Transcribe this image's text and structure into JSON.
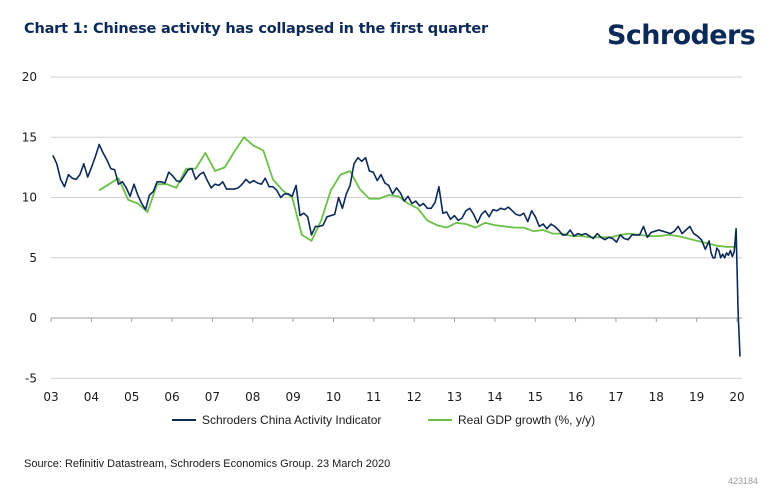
{
  "header": {
    "title": "Chart 1: Chinese activity has collapsed in the first quarter",
    "logo": "Schroders"
  },
  "footer": {
    "source": "Source: Refinitiv Datastream, Schroders Economics Group. 23 March 2020",
    "code": "423184"
  },
  "colors": {
    "activity": "#0b2a5a",
    "gdp": "#6cc04a",
    "grid": "#d0d0d0",
    "axis": "#a0a0a0"
  },
  "chart_data": {
    "type": "line",
    "title": "Chart 1: Chinese activity has collapsed in the first quarter",
    "xlabel": "",
    "ylabel": "",
    "xlim": [
      2003,
      2020.05
    ],
    "ylim": [
      -5,
      20
    ],
    "yticks": [
      20,
      15,
      10,
      5,
      0,
      -5
    ],
    "xtick_labels": [
      "03",
      "04",
      "05",
      "06",
      "07",
      "08",
      "09",
      "10",
      "11",
      "12",
      "13",
      "14",
      "15",
      "16",
      "17",
      "18",
      "19",
      "20"
    ],
    "xtick_values": [
      2003,
      2004,
      2005,
      2006,
      2007,
      2008,
      2009,
      2010,
      2011,
      2012,
      2013,
      2014,
      2015,
      2016,
      2017,
      2018,
      2019,
      2020
    ],
    "grid": true,
    "legend_position": "bottom",
    "series": [
      {
        "name": "Schroders China Activity Indicator",
        "color": "#0b2a5a",
        "points": [
          [
            2003.05,
            13.5
          ],
          [
            2003.15,
            12.8
          ],
          [
            2003.25,
            11.5
          ],
          [
            2003.35,
            10.9
          ],
          [
            2003.45,
            11.9
          ],
          [
            2003.55,
            11.6
          ],
          [
            2003.65,
            11.5
          ],
          [
            2003.75,
            11.9
          ],
          [
            2003.85,
            12.8
          ],
          [
            2003.95,
            11.7
          ],
          [
            2004.05,
            12.5
          ],
          [
            2004.15,
            13.4
          ],
          [
            2004.25,
            14.4
          ],
          [
            2004.35,
            13.7
          ],
          [
            2004.45,
            13.1
          ],
          [
            2004.55,
            12.4
          ],
          [
            2004.65,
            12.3
          ],
          [
            2004.75,
            11.1
          ],
          [
            2004.85,
            11.3
          ],
          [
            2004.95,
            10.8
          ],
          [
            2005.05,
            10.1
          ],
          [
            2005.15,
            11.1
          ],
          [
            2005.25,
            10.2
          ],
          [
            2005.35,
            9.5
          ],
          [
            2005.45,
            9.0
          ],
          [
            2005.55,
            10.2
          ],
          [
            2005.65,
            10.5
          ],
          [
            2005.75,
            11.3
          ],
          [
            2005.85,
            11.3
          ],
          [
            2005.95,
            11.2
          ],
          [
            2006.05,
            12.1
          ],
          [
            2006.15,
            11.8
          ],
          [
            2006.25,
            11.4
          ],
          [
            2006.35,
            11.3
          ],
          [
            2006.45,
            11.8
          ],
          [
            2006.55,
            12.3
          ],
          [
            2006.65,
            12.4
          ],
          [
            2006.75,
            11.5
          ],
          [
            2006.85,
            11.9
          ],
          [
            2006.95,
            12.1
          ],
          [
            2007.05,
            11.4
          ],
          [
            2007.15,
            10.8
          ],
          [
            2007.25,
            11.1
          ],
          [
            2007.35,
            11.0
          ],
          [
            2007.45,
            11.3
          ],
          [
            2007.55,
            10.7
          ],
          [
            2007.65,
            10.7
          ],
          [
            2007.75,
            10.7
          ],
          [
            2007.85,
            10.8
          ],
          [
            2007.95,
            11.1
          ],
          [
            2008.05,
            11.5
          ],
          [
            2008.15,
            11.2
          ],
          [
            2008.25,
            11.4
          ],
          [
            2008.35,
            11.2
          ],
          [
            2008.45,
            11.1
          ],
          [
            2008.55,
            11.6
          ],
          [
            2008.65,
            10.9
          ],
          [
            2008.75,
            10.9
          ],
          [
            2008.85,
            10.6
          ],
          [
            2008.95,
            10.0
          ],
          [
            2009.05,
            10.3
          ],
          [
            2009.15,
            10.3
          ],
          [
            2009.25,
            10.1
          ],
          [
            2009.35,
            11.0
          ],
          [
            2009.45,
            8.5
          ],
          [
            2009.55,
            8.7
          ],
          [
            2009.65,
            8.4
          ],
          [
            2009.75,
            6.9
          ],
          [
            2009.85,
            7.6
          ],
          [
            2009.95,
            7.6
          ],
          [
            2010.05,
            7.7
          ],
          [
            2010.15,
            8.4
          ],
          [
            2010.25,
            8.5
          ],
          [
            2010.35,
            8.6
          ],
          [
            2010.45,
            10.0
          ],
          [
            2010.55,
            9.1
          ],
          [
            2010.65,
            10.3
          ],
          [
            2010.75,
            11.0
          ],
          [
            2010.85,
            12.8
          ],
          [
            2010.95,
            13.3
          ],
          [
            2011.05,
            13.0
          ],
          [
            2011.15,
            13.3
          ],
          [
            2011.25,
            12.2
          ],
          [
            2011.35,
            12.1
          ],
          [
            2011.45,
            11.4
          ],
          [
            2011.55,
            11.9
          ],
          [
            2011.65,
            11.2
          ],
          [
            2011.75,
            11.0
          ],
          [
            2011.85,
            10.3
          ],
          [
            2011.95,
            10.8
          ],
          [
            2012.05,
            10.4
          ],
          [
            2012.15,
            9.7
          ],
          [
            2012.25,
            10.1
          ],
          [
            2012.35,
            9.5
          ],
          [
            2012.45,
            9.7
          ],
          [
            2012.55,
            9.3
          ],
          [
            2012.65,
            9.5
          ],
          [
            2012.75,
            9.1
          ],
          [
            2012.85,
            9.1
          ],
          [
            2012.95,
            9.6
          ],
          [
            2013.05,
            10.9
          ],
          [
            2013.15,
            8.7
          ],
          [
            2013.25,
            8.8
          ],
          [
            2013.35,
            8.2
          ],
          [
            2013.45,
            8.5
          ],
          [
            2013.55,
            8.1
          ],
          [
            2013.65,
            8.3
          ],
          [
            2013.75,
            8.9
          ],
          [
            2013.85,
            9.1
          ],
          [
            2013.95,
            8.6
          ],
          [
            2014.05,
            7.9
          ],
          [
            2014.15,
            8.6
          ],
          [
            2014.25,
            8.9
          ],
          [
            2014.35,
            8.4
          ],
          [
            2014.45,
            9.0
          ],
          [
            2014.55,
            8.9
          ],
          [
            2014.65,
            9.1
          ],
          [
            2014.75,
            9.0
          ],
          [
            2014.85,
            9.2
          ],
          [
            2014.95,
            8.9
          ],
          [
            2015.05,
            8.6
          ],
          [
            2015.15,
            8.5
          ],
          [
            2015.25,
            8.7
          ],
          [
            2015.35,
            8.0
          ],
          [
            2015.45,
            8.9
          ],
          [
            2015.55,
            8.4
          ],
          [
            2015.65,
            7.6
          ],
          [
            2015.75,
            7.8
          ],
          [
            2015.85,
            7.4
          ],
          [
            2015.95,
            7.8
          ],
          [
            2016.05,
            7.6
          ],
          [
            2016.15,
            7.3
          ],
          [
            2016.25,
            6.9
          ],
          [
            2016.35,
            6.9
          ],
          [
            2016.45,
            7.3
          ],
          [
            2016.55,
            6.8
          ],
          [
            2016.65,
            7.0
          ],
          [
            2016.75,
            6.9
          ],
          [
            2016.85,
            7.0
          ],
          [
            2016.95,
            6.8
          ],
          [
            2017.05,
            6.6
          ],
          [
            2017.15,
            7.0
          ],
          [
            2017.25,
            6.7
          ],
          [
            2017.35,
            6.5
          ],
          [
            2017.45,
            6.7
          ],
          [
            2017.55,
            6.6
          ],
          [
            2017.65,
            6.3
          ],
          [
            2017.75,
            6.9
          ],
          [
            2017.85,
            6.6
          ],
          [
            2017.95,
            6.5
          ],
          [
            2018.05,
            6.9
          ],
          [
            2018.15,
            6.9
          ],
          [
            2018.25,
            6.9
          ],
          [
            2018.35,
            7.6
          ],
          [
            2018.45,
            6.7
          ],
          [
            2018.55,
            7.1
          ],
          [
            2018.65,
            7.2
          ],
          [
            2018.75,
            7.3
          ],
          [
            2018.85,
            7.2
          ],
          [
            2018.95,
            7.1
          ],
          [
            2019.05,
            7.0
          ],
          [
            2019.15,
            7.2
          ],
          [
            2019.25,
            7.6
          ],
          [
            2019.35,
            7.0
          ],
          [
            2019.45,
            7.3
          ],
          [
            2019.55,
            7.6
          ],
          [
            2019.65,
            7.0
          ],
          [
            2019.75,
            6.8
          ],
          [
            2019.85,
            6.5
          ],
          [
            2019.95,
            5.7
          ],
          [
            2020.05,
            6.4
          ],
          [
            2020.1,
            5.4
          ],
          [
            2020.15,
            5.0
          ],
          [
            2020.2,
            5.0
          ],
          [
            2020.25,
            5.8
          ],
          [
            2020.3,
            5.6
          ],
          [
            2020.35,
            5.0
          ],
          [
            2020.4,
            5.3
          ],
          [
            2020.45,
            5.0
          ],
          [
            2020.5,
            5.4
          ],
          [
            2020.55,
            5.2
          ],
          [
            2020.6,
            5.6
          ],
          [
            2020.65,
            5.1
          ],
          [
            2020.7,
            5.5
          ],
          [
            2020.75,
            7.4
          ],
          [
            2020.8,
            0.5
          ],
          [
            2020.85,
            -3.2
          ]
        ]
      },
      {
        "name": "Real GDP growth (%, y/y)",
        "color": "#6cc04a",
        "points": [
          [
            2004.25,
            10.6
          ],
          [
            2004.75,
            11.6
          ],
          [
            2005.0,
            9.8
          ],
          [
            2005.25,
            9.5
          ],
          [
            2005.5,
            8.8
          ],
          [
            2005.75,
            11.1
          ],
          [
            2006.0,
            11.1
          ],
          [
            2006.25,
            10.8
          ],
          [
            2006.5,
            12.4
          ],
          [
            2006.75,
            12.4
          ],
          [
            2007.0,
            13.7
          ],
          [
            2007.25,
            12.2
          ],
          [
            2007.5,
            12.5
          ],
          [
            2007.75,
            13.8
          ],
          [
            2008.0,
            15.0
          ],
          [
            2008.25,
            14.3
          ],
          [
            2008.5,
            13.9
          ],
          [
            2008.75,
            11.5
          ],
          [
            2009.0,
            10.6
          ],
          [
            2009.25,
            10.0
          ],
          [
            2009.5,
            6.9
          ],
          [
            2009.75,
            6.4
          ],
          [
            2010.0,
            8.1
          ],
          [
            2010.25,
            10.6
          ],
          [
            2010.5,
            11.9
          ],
          [
            2010.75,
            12.2
          ],
          [
            2011.0,
            10.7
          ],
          [
            2011.25,
            9.9
          ],
          [
            2011.5,
            9.9
          ],
          [
            2011.75,
            10.2
          ],
          [
            2012.0,
            10.1
          ],
          [
            2012.25,
            9.5
          ],
          [
            2012.5,
            9.1
          ],
          [
            2012.75,
            8.1
          ],
          [
            2013.0,
            7.7
          ],
          [
            2013.25,
            7.5
          ],
          [
            2013.5,
            7.9
          ],
          [
            2013.75,
            7.8
          ],
          [
            2014.0,
            7.5
          ],
          [
            2014.25,
            7.9
          ],
          [
            2014.5,
            7.7
          ],
          [
            2014.75,
            7.6
          ],
          [
            2015.0,
            7.5
          ],
          [
            2015.25,
            7.5
          ],
          [
            2015.5,
            7.2
          ],
          [
            2015.75,
            7.3
          ],
          [
            2016.0,
            7.0
          ],
          [
            2016.25,
            7.0
          ],
          [
            2016.5,
            6.8
          ],
          [
            2016.75,
            6.8
          ],
          [
            2017.0,
            6.7
          ],
          [
            2017.25,
            6.7
          ],
          [
            2017.5,
            6.7
          ],
          [
            2017.75,
            6.9
          ],
          [
            2018.0,
            7.0
          ],
          [
            2018.25,
            6.9
          ],
          [
            2018.5,
            6.8
          ],
          [
            2018.75,
            6.8
          ],
          [
            2019.0,
            6.9
          ],
          [
            2019.25,
            6.8
          ],
          [
            2019.5,
            6.6
          ],
          [
            2019.75,
            6.4
          ],
          [
            2020.0,
            6.2
          ],
          [
            2020.25,
            6.0
          ],
          [
            2020.5,
            5.9
          ],
          [
            2020.75,
            5.9
          ]
        ]
      }
    ]
  },
  "legend": {
    "items": [
      {
        "label": "Schroders China Activity Indicator"
      },
      {
        "label": "Real GDP growth (%, y/y)"
      }
    ]
  }
}
